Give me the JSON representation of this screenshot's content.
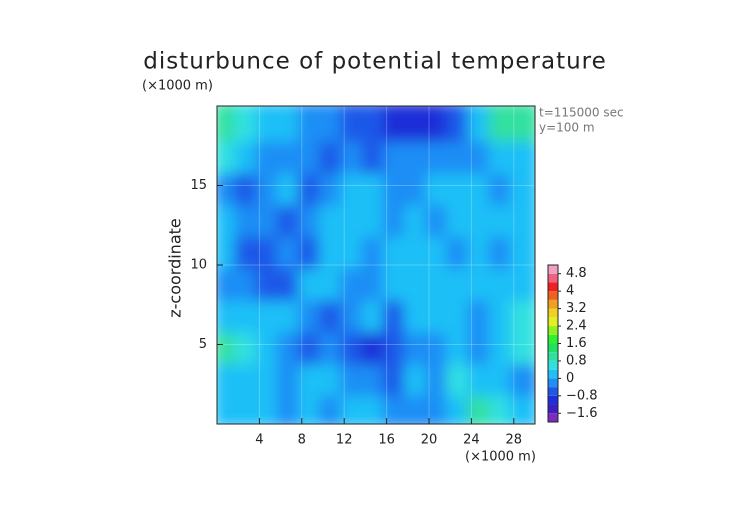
{
  "chart_data": {
    "type": "contour",
    "title": "disturbunce of potential temperature",
    "y_unit": "(×1000 m)",
    "x_unit": "(×1000 m)",
    "ylabel": "z-coordinate",
    "annotations": [
      "t=115000 sec",
      "y=100 m"
    ],
    "x": [
      1,
      3,
      5,
      7,
      9,
      11,
      13,
      15,
      17,
      19,
      21,
      23,
      25,
      27,
      29
    ],
    "z": [
      1,
      3,
      5,
      7,
      9,
      11,
      13,
      15,
      17,
      19
    ],
    "values": [
      [
        0.2,
        0.2,
        0.0,
        -0.2,
        0.2,
        -0.4,
        0.2,
        0.0,
        -0.2,
        -0.4,
        -0.2,
        0.2,
        0.8,
        0.4,
        0.2
      ],
      [
        0.2,
        0.0,
        0.2,
        -0.4,
        0.0,
        0.2,
        -0.4,
        -0.2,
        -0.6,
        0.0,
        -0.4,
        0.4,
        0.2,
        0.0,
        -0.2
      ],
      [
        0.8,
        0.6,
        0.0,
        -0.2,
        -0.6,
        -0.4,
        -0.8,
        -1.2,
        -0.8,
        -0.2,
        -0.4,
        0.0,
        -0.4,
        0.0,
        0.4
      ],
      [
        0.2,
        0.2,
        0.0,
        0.2,
        -0.4,
        -0.6,
        -0.2,
        0.2,
        -0.6,
        0.0,
        0.2,
        0.0,
        -0.2,
        0.0,
        0.6
      ],
      [
        -0.4,
        -0.2,
        -0.6,
        -0.8,
        0.0,
        0.0,
        -0.4,
        -0.2,
        0.2,
        0.0,
        0.0,
        0.2,
        0.0,
        0.2,
        0.0
      ],
      [
        0.0,
        -0.6,
        -0.6,
        -0.4,
        -0.6,
        0.0,
        0.0,
        -0.4,
        0.0,
        0.2,
        0.0,
        -0.2,
        0.2,
        -0.2,
        0.2
      ],
      [
        0.0,
        -0.4,
        -0.2,
        -0.6,
        -0.4,
        0.0,
        0.0,
        0.2,
        -0.4,
        0.0,
        -0.2,
        0.0,
        0.0,
        0.2,
        0.0
      ],
      [
        -0.2,
        -0.6,
        -0.4,
        0.0,
        -0.6,
        -0.4,
        0.0,
        0.0,
        -0.2,
        -0.4,
        0.0,
        0.2,
        0.0,
        -0.2,
        0.0
      ],
      [
        0.4,
        0.0,
        -0.4,
        -0.2,
        -0.2,
        -0.6,
        -0.4,
        -0.6,
        -0.4,
        -0.2,
        -0.4,
        -0.2,
        -0.2,
        0.2,
        0.2
      ],
      [
        0.8,
        0.6,
        0.2,
        0.0,
        -0.2,
        -0.4,
        -0.6,
        -0.8,
        -1.2,
        -1.2,
        -1.0,
        -0.6,
        0.0,
        0.8,
        0.8
      ]
    ],
    "xlim": [
      0,
      30
    ],
    "ylim": [
      0,
      20
    ],
    "xticks": [
      4,
      8,
      12,
      16,
      20,
      24,
      28
    ],
    "yticks": [
      5,
      10,
      15
    ],
    "levels": [
      -2.0,
      -1.6,
      -1.2,
      -0.8,
      -0.4,
      0.0,
      0.4,
      0.8,
      1.2,
      1.6,
      2.0,
      2.4,
      2.8,
      3.2,
      3.6,
      4.0,
      4.4,
      4.8,
      5.2
    ],
    "colors": [
      "#7b2cbf",
      "#3b1ec4",
      "#1c2fd8",
      "#1f58e8",
      "#1f8ef5",
      "#1fc0f7",
      "#30e0e0",
      "#30e0a0",
      "#20e060",
      "#30f030",
      "#90f020",
      "#e0f020",
      "#f0d020",
      "#f0a020",
      "#f06020",
      "#f02020",
      "#f06080",
      "#f0a0c0"
    ],
    "cticks": [
      {
        "value": -1.6,
        "label": "−1.6"
      },
      {
        "value": -0.8,
        "label": "−0.8"
      },
      0,
      0.8,
      1.6,
      2.4,
      3.2,
      4,
      4.8
    ]
  }
}
